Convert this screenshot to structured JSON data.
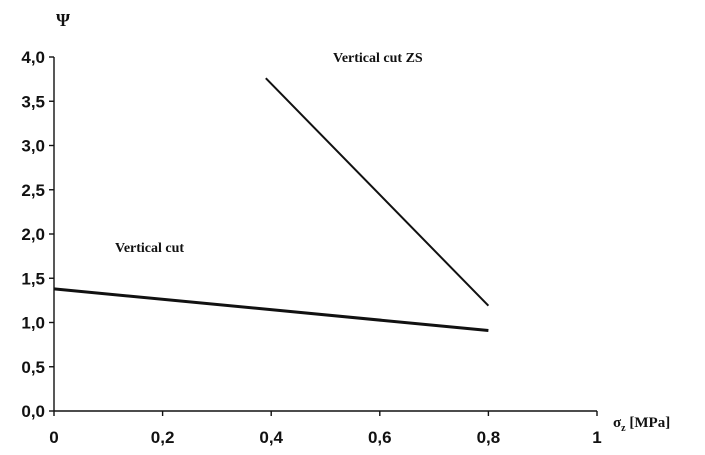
{
  "chart_data": {
    "type": "line",
    "title": "",
    "xlabel": "σz [MPa]",
    "ylabel": "Ψ",
    "xlim": [
      0,
      1
    ],
    "ylim": [
      0,
      4
    ],
    "grid": false,
    "xticks": [
      "0",
      "0,2",
      "0,4",
      "0,6",
      "0,8",
      "1"
    ],
    "xtick_values": [
      0,
      0.2,
      0.4,
      0.6,
      0.8,
      1
    ],
    "yticks": [
      "0,0",
      "0,5",
      "1,0",
      "1,5",
      "2,0",
      "2,5",
      "3,0",
      "3,5",
      "4,0"
    ],
    "ytick_values": [
      0,
      0.5,
      1.0,
      1.5,
      2.0,
      2.5,
      3.0,
      3.5,
      4.0
    ],
    "series": [
      {
        "name": "Vertical cut",
        "x": [
          0,
          0.8
        ],
        "y": [
          1.38,
          0.91
        ],
        "color": "#111111",
        "line_width": 3
      },
      {
        "name": "Vertical cut ZS",
        "x": [
          0.39,
          0.8
        ],
        "y": [
          3.76,
          1.19
        ],
        "color": "#111111",
        "line_width": 2
      }
    ]
  }
}
